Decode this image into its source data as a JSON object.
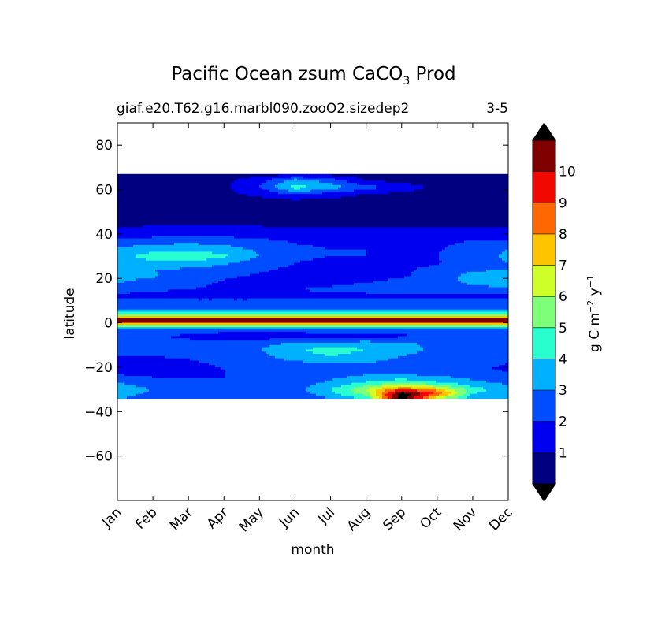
{
  "chart_data": {
    "type": "heatmap",
    "title": "Pacific Ocean zsum CaCO",
    "title_sub": "3",
    "title_end": " Prod",
    "subtitle_left": "giaf.e20.T62.g16.marbl090.zooO2.sizedep2",
    "subtitle_right": "3-5",
    "xlabel": "month",
    "ylabel": "latitude",
    "x_categories": [
      "Jan",
      "Feb",
      "Mar",
      "Apr",
      "May",
      "Jun",
      "Jul",
      "Aug",
      "Sep",
      "Oct",
      "Nov",
      "Dec"
    ],
    "yticks": [
      80,
      60,
      40,
      20,
      0,
      -20,
      -40,
      -60
    ],
    "ylim": [
      -80,
      90
    ],
    "data_lat_range": [
      -34,
      67
    ],
    "colorbar": {
      "label_main": "g C m",
      "label_exp1": "−2",
      "label_mid": " y",
      "label_exp2": "−1",
      "tick_labels": [
        "1",
        "2",
        "3",
        "4",
        "5",
        "6",
        "7",
        "8",
        "9",
        "10"
      ],
      "levels": [
        0,
        1,
        2,
        3,
        4,
        5,
        6,
        7,
        8,
        9,
        10,
        11
      ],
      "colors": [
        "#000080",
        "#0000f1",
        "#004dff",
        "#00b1ff",
        "#29ffce",
        "#7dff7a",
        "#ceff29",
        "#ffc400",
        "#ff6800",
        "#f10800",
        "#800000"
      ],
      "extend_color": "#000000"
    },
    "field": {
      "rows_lat_desc": [
        67,
        64,
        61,
        58,
        55,
        50,
        45,
        40,
        37,
        33,
        30,
        27,
        24,
        21,
        18,
        15,
        12,
        9,
        6,
        3,
        1,
        -1,
        -3,
        -6,
        -9,
        -12,
        -15,
        -18,
        -21,
        -24,
        -27,
        -30,
        -32,
        -34
      ],
      "values": [
        [
          0.7,
          0.7,
          0.7,
          0.7,
          0.7,
          0.7,
          0.7,
          0.7,
          0.7,
          0.7,
          0.7,
          0.7
        ],
        [
          0.7,
          0.7,
          0.7,
          0.8,
          1.5,
          3.5,
          2.5,
          0.9,
          0.7,
          0.7,
          0.7,
          0.7
        ],
        [
          0.7,
          0.7,
          0.7,
          0.8,
          2.0,
          4.5,
          3.5,
          2.5,
          1.5,
          0.8,
          0.7,
          0.7
        ],
        [
          0.7,
          0.7,
          0.7,
          0.8,
          1.2,
          2.2,
          1.5,
          0.9,
          0.8,
          0.7,
          0.7,
          0.7
        ],
        [
          0.6,
          0.6,
          0.6,
          0.6,
          0.7,
          0.8,
          0.7,
          0.6,
          0.6,
          0.6,
          0.6,
          0.6
        ],
        [
          0.6,
          0.6,
          0.6,
          0.6,
          0.6,
          0.6,
          0.6,
          0.6,
          0.6,
          0.6,
          0.6,
          0.6
        ],
        [
          0.8,
          0.8,
          0.8,
          0.8,
          0.8,
          0.8,
          0.8,
          0.8,
          0.8,
          0.8,
          0.8,
          0.8
        ],
        [
          1.4,
          1.5,
          1.6,
          1.6,
          1.5,
          1.2,
          1.2,
          1.3,
          1.3,
          1.3,
          1.4,
          1.4
        ],
        [
          2.2,
          2.5,
          2.6,
          2.5,
          2.2,
          1.9,
          1.8,
          1.8,
          1.8,
          1.8,
          2.0,
          2.1
        ],
        [
          3.2,
          3.6,
          3.8,
          3.5,
          2.8,
          2.2,
          2.0,
          2.0,
          1.9,
          1.9,
          2.5,
          3.0
        ],
        [
          3.6,
          4.5,
          4.8,
          4.2,
          3.0,
          2.2,
          2.0,
          2.0,
          1.9,
          2.0,
          2.6,
          3.2
        ],
        [
          3.2,
          3.8,
          3.8,
          3.2,
          2.5,
          2.0,
          1.8,
          1.8,
          1.8,
          1.9,
          2.5,
          3.0
        ],
        [
          3.0,
          3.0,
          2.8,
          2.5,
          2.1,
          1.8,
          1.8,
          1.8,
          1.9,
          2.2,
          2.8,
          3.0
        ],
        [
          3.4,
          3.1,
          2.6,
          2.1,
          1.9,
          1.8,
          1.8,
          1.8,
          1.9,
          2.4,
          3.4,
          3.9
        ],
        [
          3.0,
          2.6,
          2.2,
          1.9,
          1.8,
          1.8,
          1.9,
          2.0,
          2.2,
          2.6,
          3.2,
          3.7
        ],
        [
          2.3,
          2.1,
          2.0,
          1.9,
          1.9,
          2.0,
          2.1,
          2.2,
          2.3,
          2.3,
          2.5,
          2.7
        ],
        [
          1.8,
          1.7,
          1.7,
          1.7,
          1.7,
          1.8,
          1.8,
          1.8,
          1.8,
          1.8,
          1.8,
          1.8
        ],
        [
          2.5,
          2.4,
          2.3,
          2.3,
          2.3,
          2.4,
          2.4,
          2.4,
          2.4,
          2.3,
          2.4,
          2.5
        ],
        [
          3.0,
          3.0,
          3.0,
          3.0,
          3.0,
          3.0,
          3.1,
          3.1,
          3.1,
          3.1,
          3.0,
          3.0
        ],
        [
          6.0,
          6.0,
          6.0,
          6.0,
          6.5,
          6.5,
          6.5,
          6.5,
          6.5,
          6.5,
          6.0,
          6.0
        ],
        [
          12.0,
          12.0,
          12.0,
          12.0,
          12.0,
          12.0,
          12.0,
          12.0,
          12.0,
          12.0,
          12.0,
          12.0
        ],
        [
          6.0,
          6.0,
          6.0,
          6.0,
          6.5,
          6.5,
          6.5,
          6.5,
          6.5,
          6.0,
          6.0,
          6.0
        ],
        [
          2.8,
          2.8,
          2.6,
          2.5,
          2.5,
          2.6,
          2.7,
          2.8,
          2.8,
          2.8,
          2.8,
          2.8
        ],
        [
          2.2,
          2.1,
          1.8,
          1.4,
          1.2,
          1.3,
          1.5,
          1.6,
          1.8,
          2.0,
          2.1,
          2.2
        ],
        [
          2.4,
          2.4,
          2.2,
          2.4,
          2.7,
          3.0,
          3.2,
          3.3,
          3.1,
          2.8,
          2.6,
          2.5
        ],
        [
          2.2,
          2.2,
          2.2,
          2.4,
          3.0,
          3.8,
          4.6,
          4.0,
          3.4,
          2.8,
          2.4,
          2.3
        ],
        [
          2.0,
          2.0,
          2.1,
          2.3,
          2.8,
          3.5,
          4.0,
          3.6,
          3.0,
          2.6,
          2.3,
          2.1
        ],
        [
          1.8,
          1.8,
          1.9,
          2.1,
          2.4,
          2.8,
          3.1,
          3.0,
          2.7,
          2.4,
          2.2,
          2.0
        ],
        [
          1.7,
          1.7,
          1.8,
          2.0,
          2.2,
          2.4,
          2.5,
          2.6,
          2.5,
          2.3,
          2.1,
          1.9
        ],
        [
          2.1,
          1.9,
          1.9,
          2.0,
          2.1,
          2.3,
          2.7,
          3.1,
          3.2,
          3.0,
          2.6,
          2.2
        ],
        [
          3.0,
          2.4,
          2.1,
          2.0,
          2.1,
          2.4,
          3.2,
          4.2,
          5.0,
          4.2,
          3.3,
          2.8
        ],
        [
          3.6,
          3.0,
          2.4,
          2.2,
          2.2,
          2.7,
          4.0,
          6.0,
          9.0,
          7.5,
          4.5,
          3.5
        ],
        [
          3.4,
          2.8,
          2.3,
          2.1,
          2.1,
          2.5,
          3.6,
          5.5,
          12.0,
          9.0,
          4.0,
          3.2
        ],
        [
          3.0,
          2.6,
          2.2,
          2.0,
          2.0,
          2.3,
          3.0,
          4.0,
          12.0,
          6.0,
          3.5,
          3.0
        ]
      ]
    }
  }
}
